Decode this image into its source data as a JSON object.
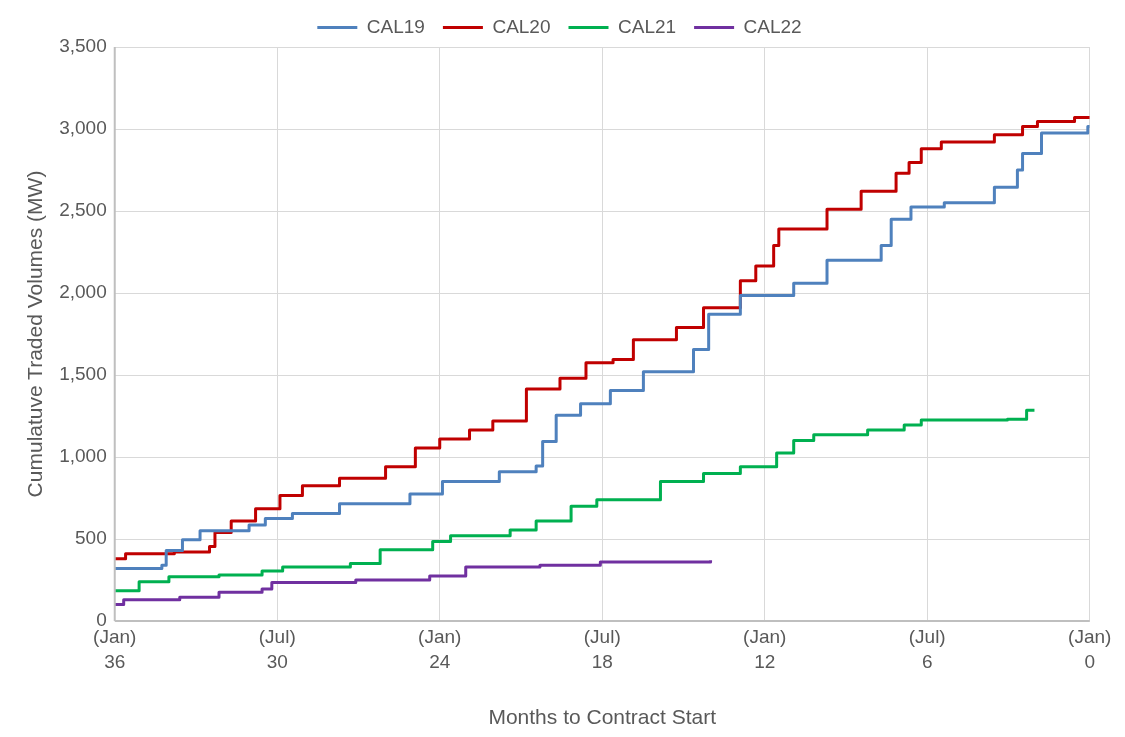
{
  "chart_data": {
    "type": "step",
    "xlabel": "Months to Contract Start",
    "ylabel": "Cumulatuve Traded Volumes (MW)",
    "xlim": [
      36,
      0
    ],
    "xticks": [
      36,
      30,
      24,
      18,
      12,
      6,
      0
    ],
    "annotations": [
      "(Jan)",
      "(Jul)",
      "(Jan)",
      "(Jul)",
      "(Jan)",
      "(Jul)",
      "(Jan)"
    ],
    "ylim": [
      0,
      3500
    ],
    "yticks": [
      0,
      {
        "value": 500,
        "label": "500"
      },
      {
        "value": 1000,
        "label": "1,000"
      },
      {
        "value": 1500,
        "label": "1,500"
      },
      {
        "value": 2000,
        "label": "2,000"
      },
      {
        "value": 2500,
        "label": "2,500"
      },
      {
        "value": 3000,
        "label": "3,000"
      },
      {
        "value": 3500,
        "label": "3,500"
      }
    ],
    "grid": true,
    "legend": "top",
    "marker": "none",
    "series": [
      {
        "name": "CAL19",
        "color": "#4f81bd",
        "x": [
          36,
          34.26,
          34.1,
          33.5,
          32.85,
          31.04,
          30.44,
          29.44,
          27.7,
          25.1,
          23.9,
          21.8,
          20.44,
          20.2,
          19.7,
          18.8,
          17.7,
          16.48,
          14.63,
          14.07,
          12.9,
          10.93,
          9.7,
          7.7,
          7.33,
          6.6,
          5.37,
          3.52,
          2.67,
          2.48,
          1.78,
          0.07,
          0
        ],
        "values": [
          320,
          340,
          430,
          495,
          550,
          585,
          625,
          655,
          715,
          775,
          850,
          910,
          945,
          1095,
          1255,
          1325,
          1405,
          1520,
          1655,
          1870,
          1985,
          2060,
          2200,
          2290,
          2450,
          2525,
          2550,
          2645,
          2750,
          2850,
          2975,
          3015,
          3015
        ]
      },
      {
        "name": "CAL20",
        "color": "#c00000",
        "x": [
          36,
          35.6,
          33.8,
          32.5,
          32.3,
          31.7,
          30.8,
          29.9,
          29.07,
          27.7,
          26,
          24.9,
          24,
          22.9,
          22.04,
          20.8,
          19.56,
          18.6,
          17.6,
          16.85,
          15.26,
          14.26,
          12.9,
          12.33,
          11.67,
          11.48,
          9.7,
          8.44,
          7.15,
          6.67,
          6.22,
          5.48,
          3.52,
          2.48,
          1.93,
          0.56,
          0
        ],
        "values": [
          380,
          410,
          420,
          455,
          540,
          610,
          685,
          765,
          825,
          870,
          940,
          1055,
          1110,
          1165,
          1220,
          1415,
          1480,
          1575,
          1595,
          1715,
          1790,
          1910,
          2075,
          2165,
          2290,
          2390,
          2510,
          2620,
          2730,
          2795,
          2880,
          2920,
          2965,
          3015,
          3045,
          3070,
          3070
        ]
      },
      {
        "name": "CAL21",
        "color": "#00b050",
        "x": [
          36,
          35.1,
          34,
          32.15,
          30.56,
          29.8,
          27.3,
          26.2,
          24.26,
          23.6,
          21.4,
          20.44,
          19.15,
          18.2,
          15.85,
          14.26,
          12.9,
          11.56,
          10.93,
          10.19,
          8.2,
          6.85,
          6.22,
          3.04,
          2.33,
          2.04
        ],
        "values": [
          185,
          240,
          270,
          280,
          305,
          330,
          350,
          435,
          485,
          520,
          555,
          610,
          700,
          740,
          850,
          900,
          940,
          1025,
          1100,
          1135,
          1165,
          1195,
          1225,
          1230,
          1285,
          1285
        ]
      },
      {
        "name": "CAL22",
        "color": "#7030a0",
        "x": [
          36,
          35.67,
          33.6,
          32.15,
          30.56,
          30.2,
          27.1,
          24.37,
          23.04,
          20.3,
          18.07,
          14.63,
          14
        ],
        "values": [
          100,
          130,
          145,
          175,
          195,
          235,
          250,
          275,
          330,
          340,
          360,
          360,
          370
        ]
      }
    ]
  }
}
